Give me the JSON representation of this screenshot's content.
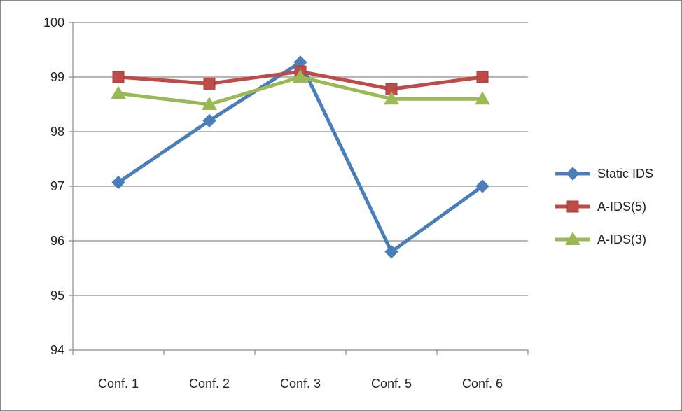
{
  "chart_data": {
    "type": "line",
    "title": "",
    "xlabel": "",
    "ylabel": "",
    "categories": [
      "Conf. 1",
      "Conf. 2",
      "Conf. 3",
      "Conf. 5",
      "Conf. 6"
    ],
    "ylim": [
      94,
      100
    ],
    "yticks": [
      "94",
      "95",
      "96",
      "97",
      "98",
      "99",
      "100"
    ],
    "grid": "horizontal",
    "legend": "right",
    "series": [
      {
        "name": "Static IDS",
        "values": [
          97.07,
          98.2,
          99.27,
          95.8,
          97.0
        ],
        "color": "#4a7ebb",
        "marker": "diamond"
      },
      {
        "name": "A-IDS(5)",
        "values": [
          99.0,
          98.88,
          99.1,
          98.78,
          99.0
        ],
        "color": "#be4b48",
        "marker": "square"
      },
      {
        "name": "A-IDS(3)",
        "values": [
          98.7,
          98.5,
          99.0,
          98.6,
          98.6
        ],
        "color": "#98b954",
        "marker": "triangle"
      }
    ]
  }
}
